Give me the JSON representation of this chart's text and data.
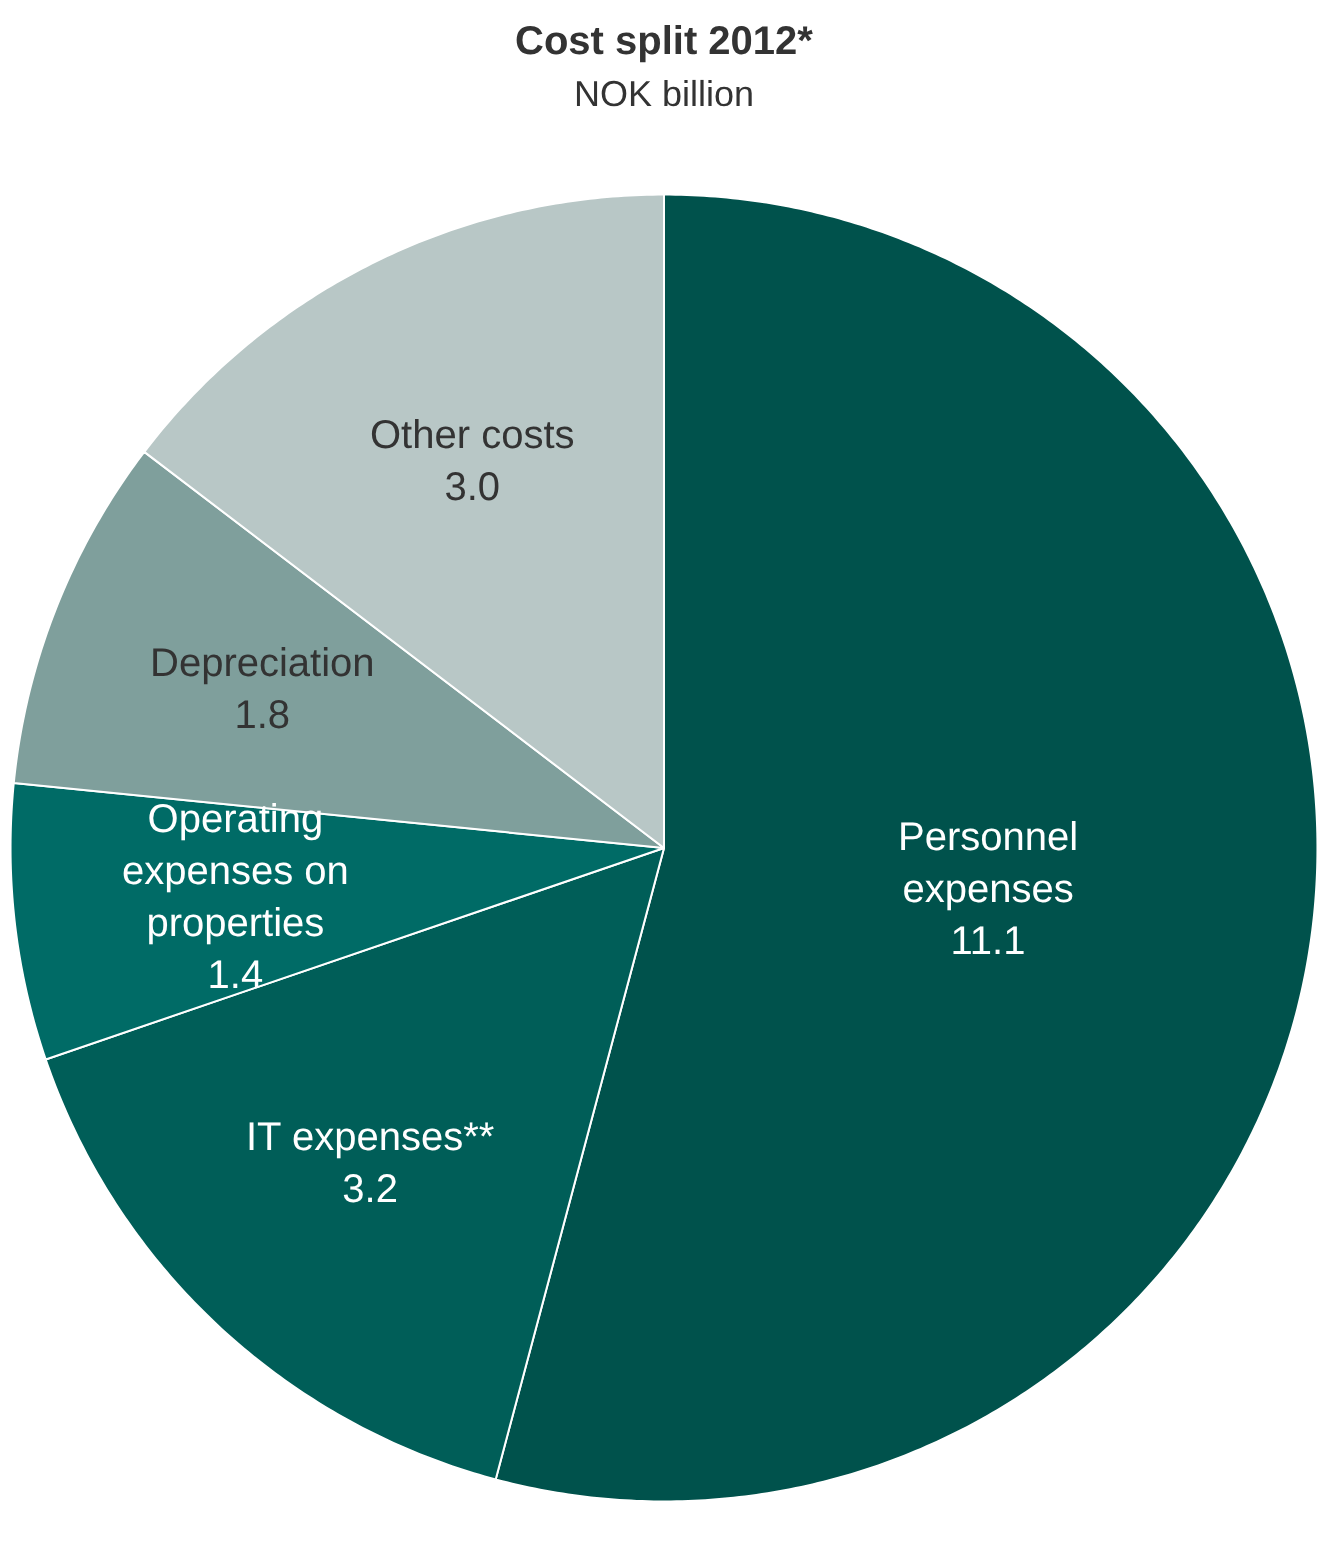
{
  "chart_data": {
    "type": "pie",
    "title": "Cost split 2012*",
    "subtitle": "NOK billion",
    "categories": [
      "Personnel expenses",
      "IT expenses**",
      "Operating expenses on properties",
      "Depreciation",
      "Other costs"
    ],
    "values": [
      11.1,
      3.2,
      1.4,
      1.8,
      3.0
    ],
    "value_labels": [
      "11.1",
      "3.2",
      "1.4",
      "1.8",
      "3.0"
    ],
    "colors": [
      "#00524c",
      "#005e58",
      "#006b66",
      "#7f9f9c",
      "#b8c7c6"
    ]
  }
}
